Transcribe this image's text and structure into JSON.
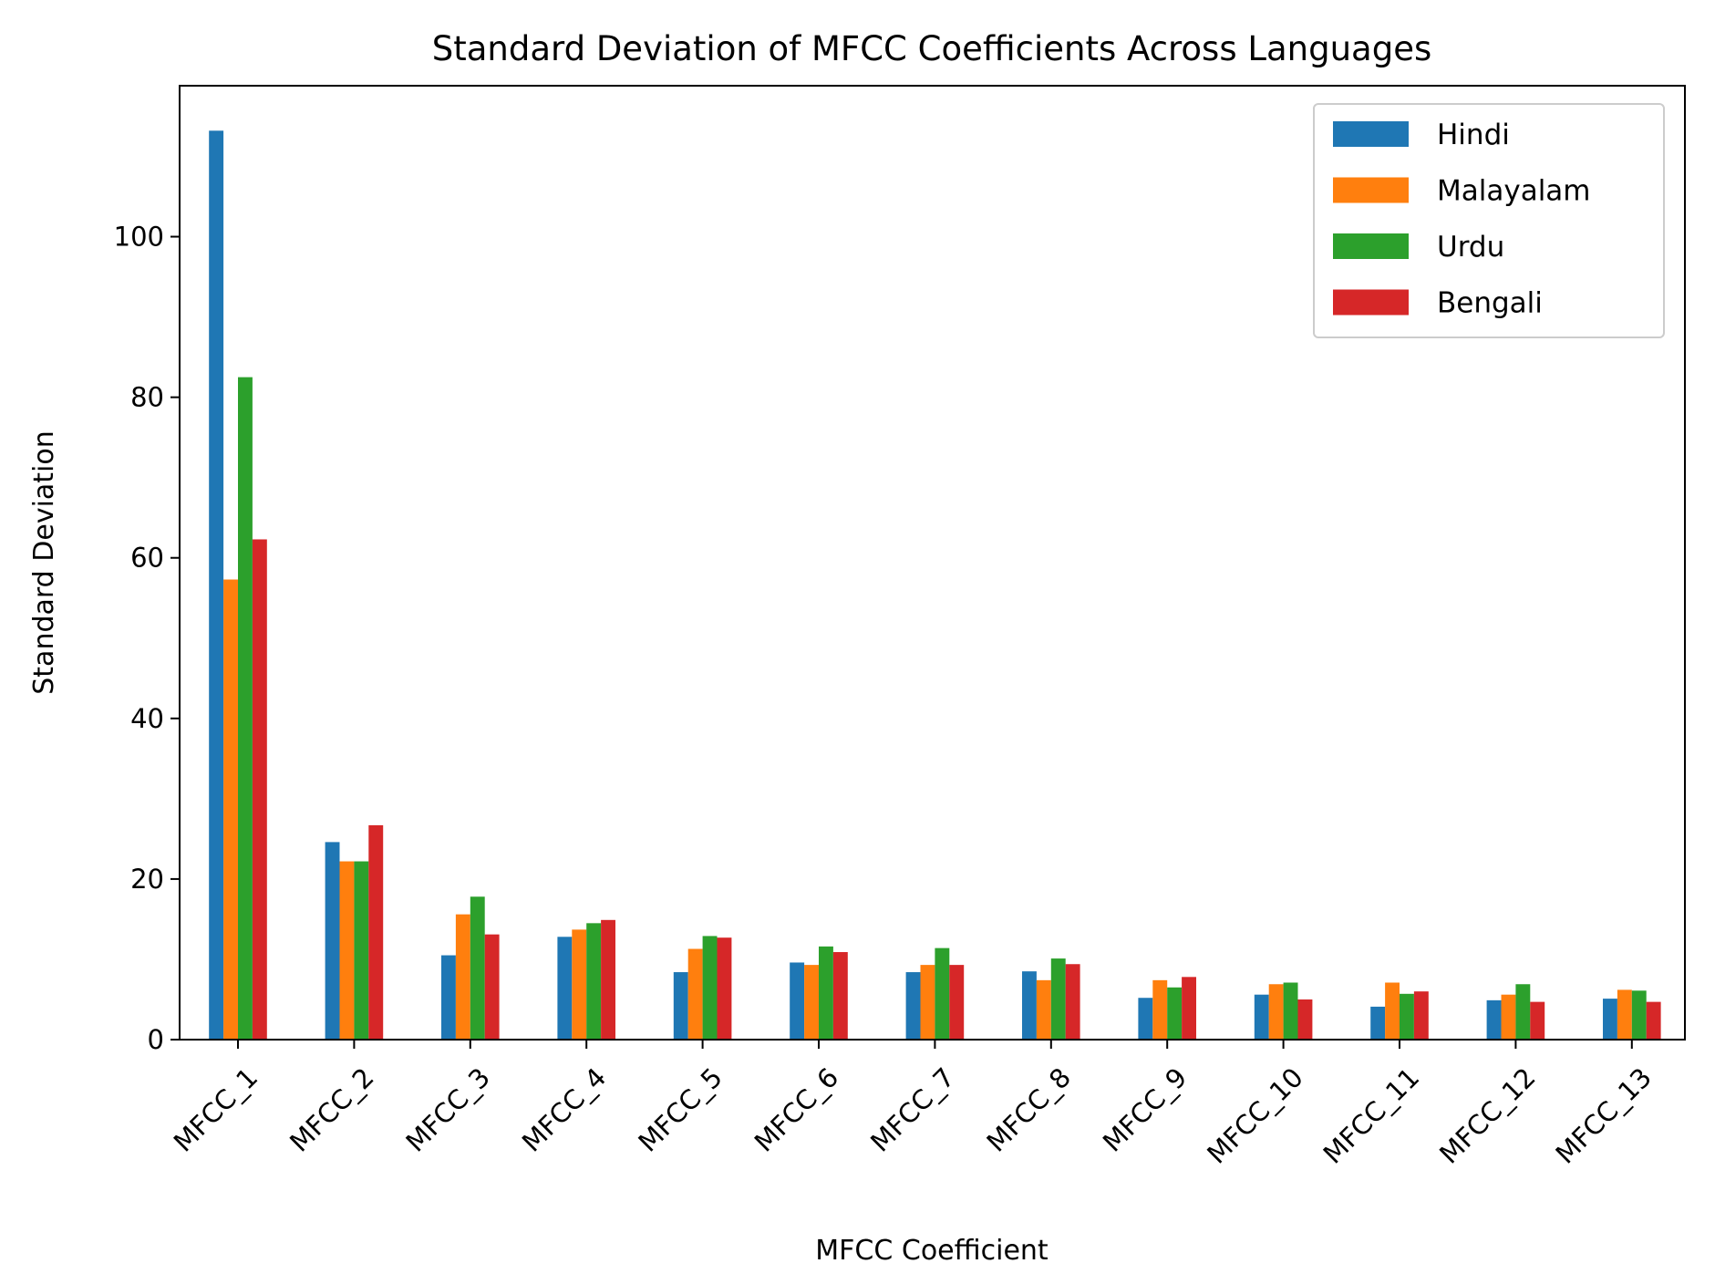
{
  "chart_data": {
    "type": "bar",
    "title": "Standard Deviation of MFCC Coefficients Across Languages",
    "xlabel": "MFCC Coefficient",
    "ylabel": "Standard Deviation",
    "ylim": [
      0,
      118.8
    ],
    "yticks": [
      0,
      20,
      40,
      60,
      80,
      100
    ],
    "grid": false,
    "legend_position": "top-right",
    "categories": [
      "MFCC_1",
      "MFCC_2",
      "MFCC_3",
      "MFCC_4",
      "MFCC_5",
      "MFCC_6",
      "MFCC_7",
      "MFCC_8",
      "MFCC_9",
      "MFCC_10",
      "MFCC_11",
      "MFCC_12",
      "MFCC_13"
    ],
    "series": [
      {
        "name": "Hindi",
        "color": "#1f77b4",
        "values": [
          113.2,
          24.6,
          10.5,
          12.8,
          8.4,
          9.6,
          8.4,
          8.5,
          5.2,
          5.6,
          4.1,
          4.9,
          5.1
        ]
      },
      {
        "name": "Malayalam",
        "color": "#ff7f0e",
        "values": [
          57.3,
          22.2,
          15.6,
          13.7,
          11.3,
          9.3,
          9.3,
          7.4,
          7.4,
          6.9,
          7.1,
          5.6,
          6.2
        ]
      },
      {
        "name": "Urdu",
        "color": "#2ca02c",
        "values": [
          82.5,
          22.2,
          17.8,
          14.5,
          12.9,
          11.6,
          11.4,
          10.1,
          6.5,
          7.1,
          5.7,
          6.9,
          6.1
        ]
      },
      {
        "name": "Bengali",
        "color": "#d62728",
        "values": [
          62.3,
          26.7,
          13.1,
          14.9,
          12.7,
          10.9,
          9.3,
          9.4,
          7.8,
          5.0,
          6.0,
          4.7,
          4.7
        ]
      }
    ]
  }
}
